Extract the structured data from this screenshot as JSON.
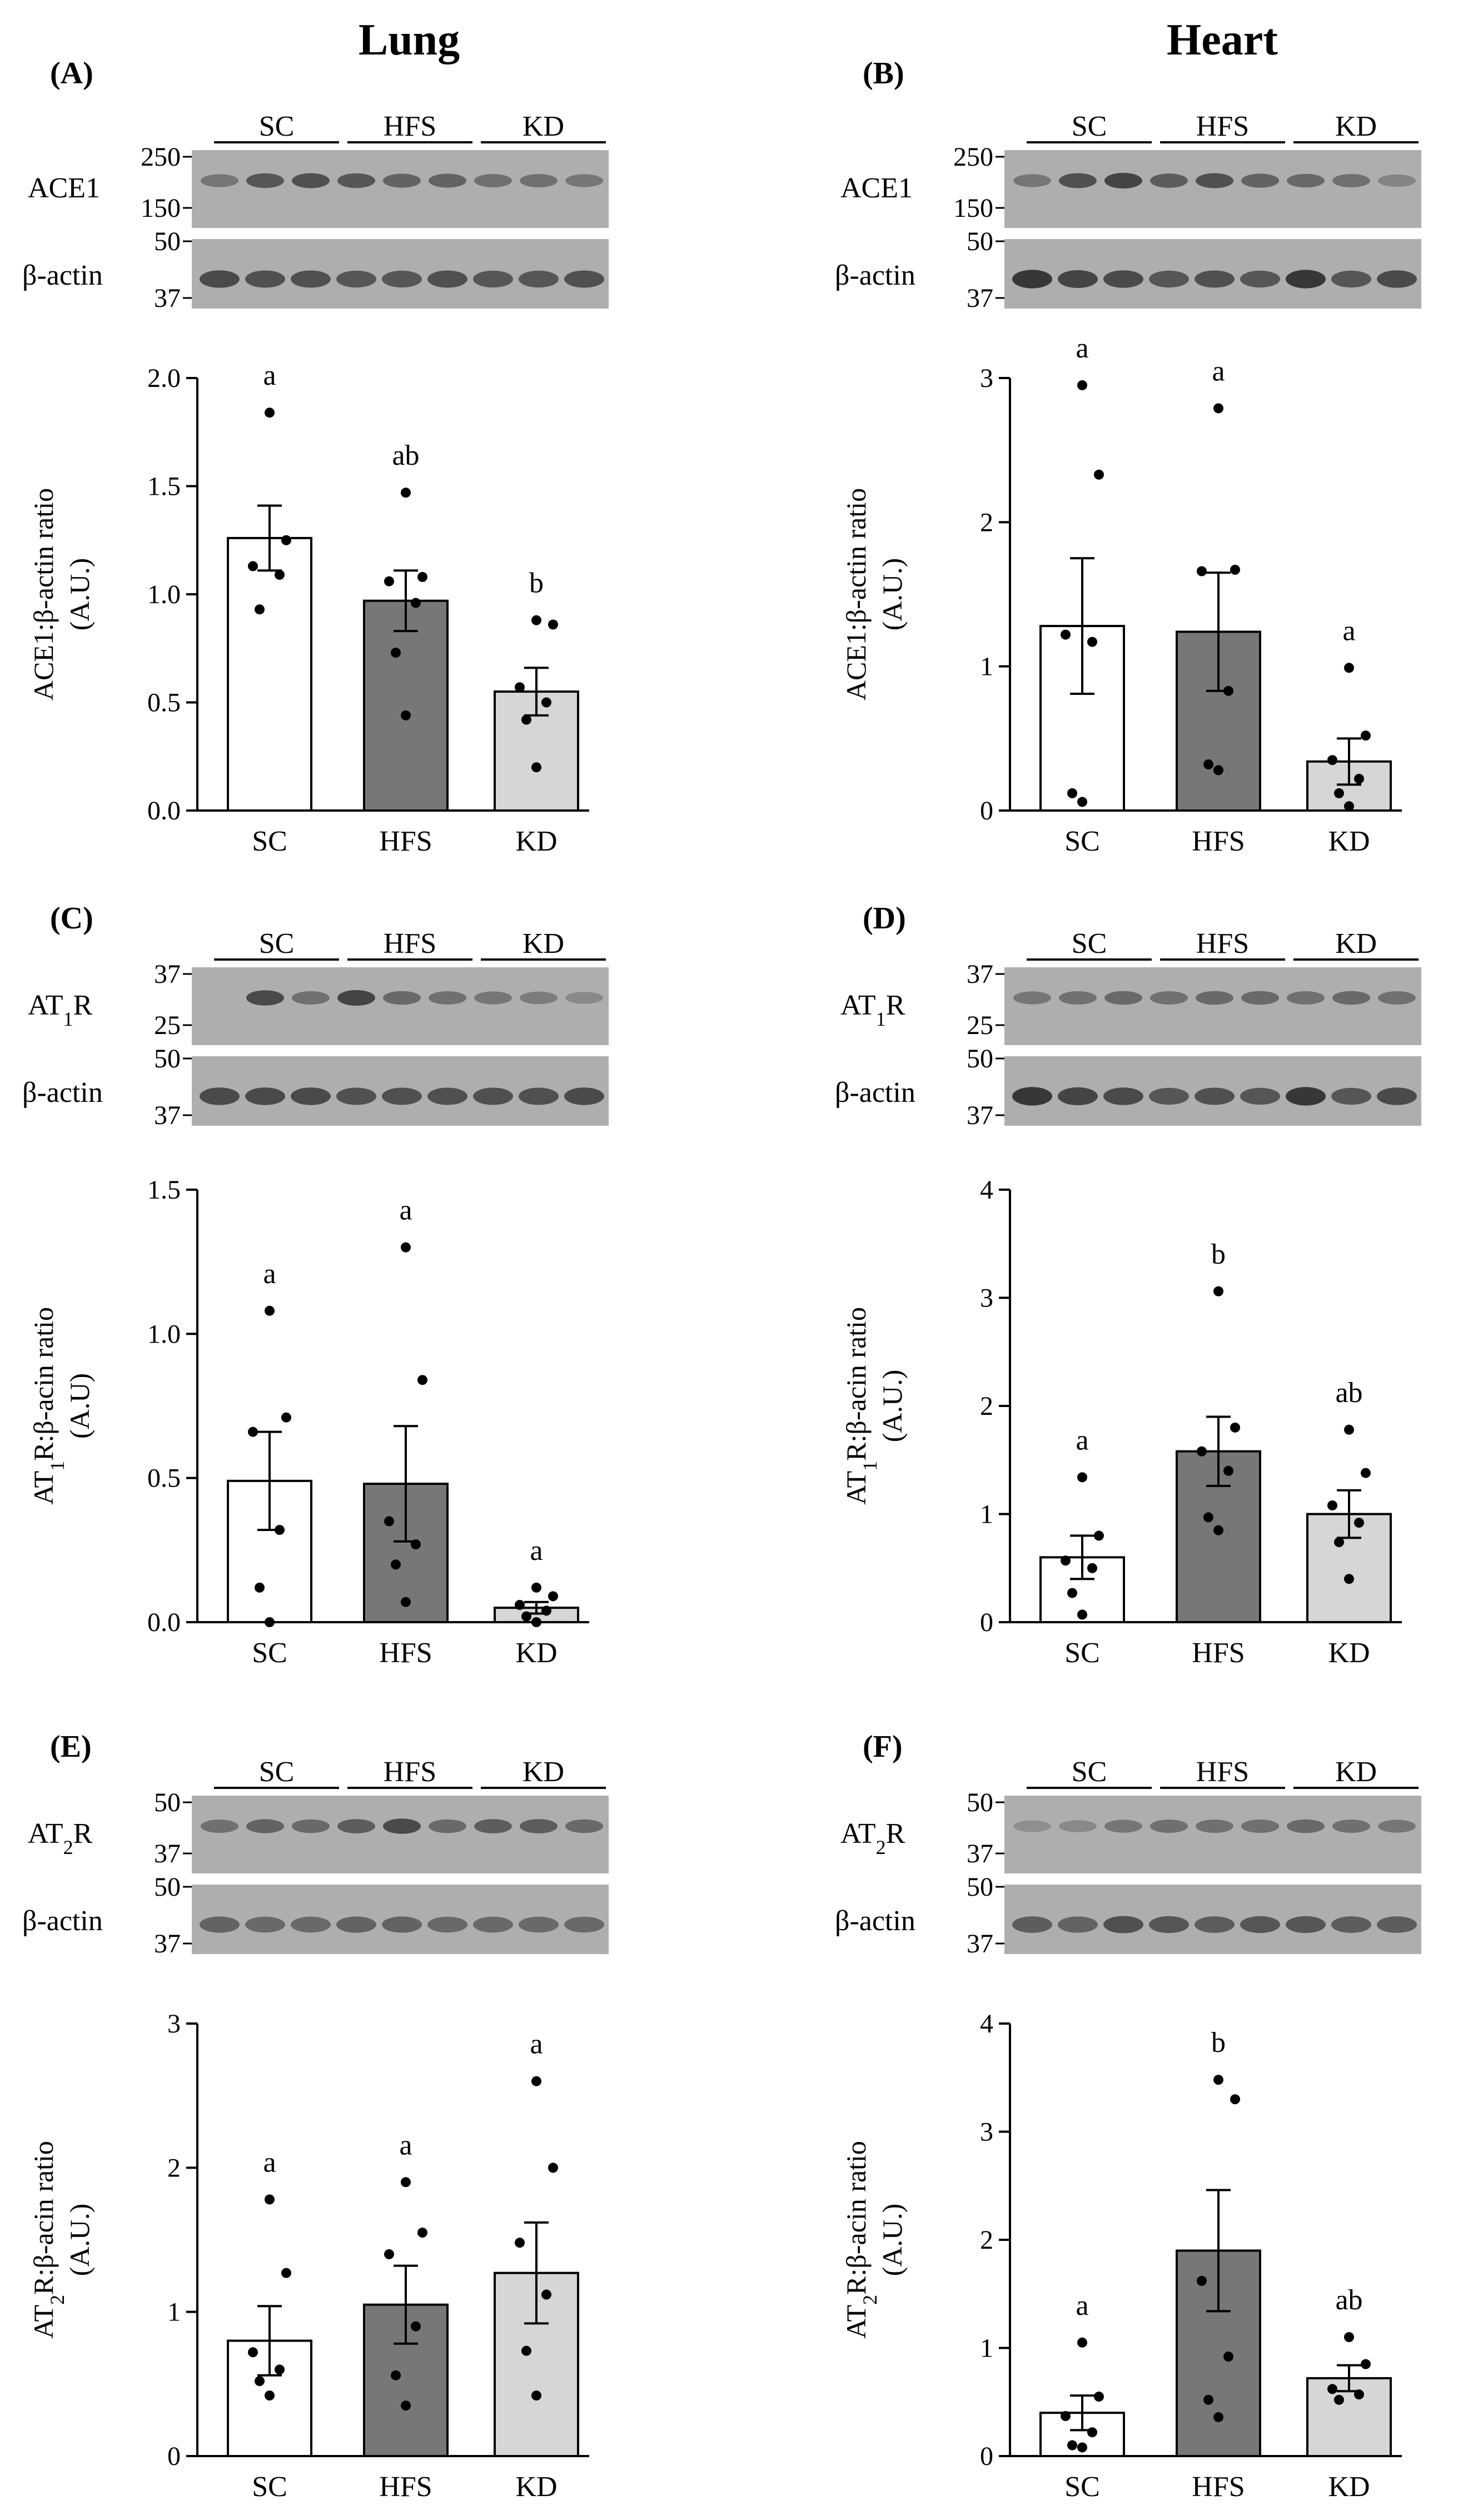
{
  "columns": [
    "Lung",
    "Heart"
  ],
  "groups": [
    "SC",
    "HFS",
    "KD"
  ],
  "colors": {
    "SC": "#ffffff",
    "HFS": "#777777",
    "KD": "#d6d6d6",
    "blot_bg": "#aeaeae",
    "band": "#3a3a3a"
  },
  "chart_data": [
    {
      "type": "bar",
      "panel": "(A)",
      "tissue": "Lung",
      "protein": "ACE1",
      "blot_markers": [
        "250",
        "150"
      ],
      "actin_markers": [
        "50",
        "37"
      ],
      "loading_label": "β-actin",
      "band_intensity": [
        0.45,
        0.7,
        0.75,
        0.7,
        0.6,
        0.6,
        0.5,
        0.5,
        0.45
      ],
      "actin_intensity": [
        0.8,
        0.75,
        0.75,
        0.7,
        0.7,
        0.75,
        0.7,
        0.7,
        0.75
      ],
      "ylabel": "ACE1:β-actin ratio",
      "ylabel2": "(A.U.)",
      "ylim": [
        0,
        2.0
      ],
      "yticks": [
        0.0,
        0.5,
        1.0,
        1.5,
        2.0
      ],
      "tick_labels": [
        "0.0",
        "0.5",
        "1.0",
        "1.5",
        "2.0"
      ],
      "categories": [
        "SC",
        "HFS",
        "KD"
      ],
      "values": [
        1.26,
        0.97,
        0.55
      ],
      "sem": [
        0.15,
        0.14,
        0.11
      ],
      "significance": [
        "a",
        "ab",
        "b"
      ],
      "points": [
        [
          1.84,
          1.25,
          1.13,
          1.09,
          0.93
        ],
        [
          1.47,
          1.08,
          1.06,
          0.96,
          0.73,
          0.44
        ],
        [
          0.88,
          0.86,
          0.57,
          0.5,
          0.42,
          0.2
        ]
      ]
    },
    {
      "type": "bar",
      "panel": "(B)",
      "tissue": "Heart",
      "protein": "ACE1",
      "blot_markers": [
        "250",
        "150"
      ],
      "actin_markers": [
        "50",
        "37"
      ],
      "loading_label": "β-actin",
      "band_intensity": [
        0.45,
        0.75,
        0.85,
        0.65,
        0.75,
        0.6,
        0.55,
        0.5,
        0.35
      ],
      "actin_intensity": [
        0.95,
        0.85,
        0.8,
        0.7,
        0.75,
        0.7,
        0.95,
        0.7,
        0.8
      ],
      "ylabel": "ACE1:β-actin ratio",
      "ylabel2": "(A.U.)",
      "ylim": [
        0,
        3
      ],
      "yticks": [
        0,
        1,
        2,
        3
      ],
      "tick_labels": [
        "0",
        "1",
        "2",
        "3"
      ],
      "categories": [
        "SC",
        "HFS",
        "KD"
      ],
      "values": [
        1.28,
        1.24,
        0.34
      ],
      "sem": [
        0.47,
        0.41,
        0.16
      ],
      "significance": [
        "a",
        "a",
        "a"
      ],
      "points": [
        [
          2.95,
          2.33,
          1.22,
          1.17,
          0.12,
          0.06
        ],
        [
          2.79,
          1.67,
          1.66,
          0.83,
          0.32,
          0.28
        ],
        [
          0.99,
          0.52,
          0.35,
          0.22,
          0.12,
          0.03
        ]
      ]
    },
    {
      "type": "bar",
      "panel": "(C)",
      "tissue": "Lung",
      "protein": "AT",
      "protein_sub": "1",
      "protein_suffix": "R",
      "blot_markers": [
        "37",
        "25"
      ],
      "actin_markers": [
        "50",
        "37"
      ],
      "loading_label": "β-actin",
      "band_intensity": [
        0.0,
        0.8,
        0.5,
        0.85,
        0.55,
        0.5,
        0.45,
        0.4,
        0.3
      ],
      "actin_intensity": [
        0.8,
        0.8,
        0.8,
        0.75,
        0.75,
        0.75,
        0.75,
        0.75,
        0.8
      ],
      "ylabel": "AT",
      "ylabel_sub": "1",
      "ylabel_rest": "R:β-acin ratio",
      "ylabel2": "(A.U)",
      "ylim": [
        0,
        1.5
      ],
      "yticks": [
        0.0,
        0.5,
        1.0,
        1.5
      ],
      "tick_labels": [
        "0.0",
        "0.5",
        "1.0",
        "1.5"
      ],
      "categories": [
        "SC",
        "HFS",
        "KD"
      ],
      "values": [
        0.49,
        0.48,
        0.05
      ],
      "sem": [
        0.17,
        0.2,
        0.02
      ],
      "significance": [
        "a",
        "a",
        "a"
      ],
      "points": [
        [
          1.08,
          0.71,
          0.66,
          0.32,
          0.12,
          0.0
        ],
        [
          1.3,
          0.84,
          0.35,
          0.27,
          0.2,
          0.07
        ],
        [
          0.12,
          0.09,
          0.06,
          0.04,
          0.02,
          0.0
        ]
      ]
    },
    {
      "type": "bar",
      "panel": "(D)",
      "tissue": "Heart",
      "protein": "AT",
      "protein_sub": "1",
      "protein_suffix": "R",
      "blot_markers": [
        "37",
        "25"
      ],
      "actin_markers": [
        "50",
        "37"
      ],
      "loading_label": "β-actin",
      "band_intensity": [
        0.45,
        0.5,
        0.55,
        0.5,
        0.55,
        0.55,
        0.5,
        0.55,
        0.5
      ],
      "actin_intensity": [
        0.95,
        0.85,
        0.8,
        0.7,
        0.75,
        0.7,
        0.95,
        0.7,
        0.8
      ],
      "ylabel": "AT",
      "ylabel_sub": "1",
      "ylabel_rest": "R:β-acin ratio",
      "ylabel2": "(A.U.)",
      "ylim": [
        0,
        4
      ],
      "yticks": [
        0,
        1,
        2,
        3,
        4
      ],
      "tick_labels": [
        "0",
        "1",
        "2",
        "3",
        "4"
      ],
      "categories": [
        "SC",
        "HFS",
        "KD"
      ],
      "values": [
        0.6,
        1.58,
        1.0
      ],
      "sem": [
        0.2,
        0.32,
        0.22
      ],
      "significance": [
        "a",
        "b",
        "ab"
      ],
      "points": [
        [
          1.34,
          0.8,
          0.57,
          0.5,
          0.27,
          0.07
        ],
        [
          3.06,
          1.8,
          1.58,
          1.4,
          0.97,
          0.85
        ],
        [
          1.78,
          1.38,
          1.08,
          0.92,
          0.74,
          0.4
        ]
      ]
    },
    {
      "type": "bar",
      "panel": "(E)",
      "tissue": "Lung",
      "protein": "AT",
      "protein_sub": "2",
      "protein_suffix": "R",
      "blot_markers": [
        "50",
        "37"
      ],
      "actin_markers": [
        "50",
        "37"
      ],
      "loading_label": "β-actin",
      "band_intensity": [
        0.5,
        0.6,
        0.55,
        0.65,
        0.8,
        0.55,
        0.65,
        0.65,
        0.55
      ],
      "actin_intensity": [
        0.6,
        0.55,
        0.55,
        0.6,
        0.6,
        0.55,
        0.55,
        0.55,
        0.55
      ],
      "ylabel": "AT",
      "ylabel_sub": "2",
      "ylabel_rest": "R:β-acin ratio",
      "ylabel2": "(A.U.)",
      "ylim": [
        0,
        3
      ],
      "yticks": [
        0,
        1,
        2,
        3
      ],
      "tick_labels": [
        "0",
        "1",
        "2",
        "3"
      ],
      "categories": [
        "SC",
        "HFS",
        "KD"
      ],
      "values": [
        0.8,
        1.05,
        1.27
      ],
      "sem": [
        0.24,
        0.27,
        0.35
      ],
      "significance": [
        "a",
        "a",
        "a"
      ],
      "points": [
        [
          1.78,
          1.27,
          0.72,
          0.6,
          0.52,
          0.42
        ],
        [
          1.9,
          1.55,
          1.4,
          0.9,
          0.56,
          0.35
        ],
        [
          2.6,
          2.0,
          1.48,
          1.12,
          0.73,
          0.42
        ]
      ]
    },
    {
      "type": "bar",
      "panel": "(F)",
      "tissue": "Heart",
      "protein": "AT",
      "protein_sub": "2",
      "protein_suffix": "R",
      "blot_markers": [
        "50",
        "37"
      ],
      "actin_markers": [
        "50",
        "37"
      ],
      "loading_label": "β-actin",
      "band_intensity": [
        0.25,
        0.3,
        0.45,
        0.5,
        0.5,
        0.5,
        0.55,
        0.5,
        0.45
      ],
      "actin_intensity": [
        0.65,
        0.6,
        0.75,
        0.7,
        0.65,
        0.7,
        0.7,
        0.65,
        0.65
      ],
      "ylabel": "AT",
      "ylabel_sub": "2",
      "ylabel_rest": "R:β-acin ratio",
      "ylabel2": "(A.U.)",
      "ylim": [
        0,
        4
      ],
      "yticks": [
        0,
        1,
        2,
        3,
        4
      ],
      "tick_labels": [
        "0",
        "1",
        "2",
        "3",
        "4"
      ],
      "categories": [
        "SC",
        "HFS",
        "KD"
      ],
      "values": [
        0.4,
        1.9,
        0.72
      ],
      "sem": [
        0.16,
        0.56,
        0.12
      ],
      "significance": [
        "a",
        "b",
        "ab"
      ],
      "points": [
        [
          1.05,
          0.55,
          0.37,
          0.22,
          0.1,
          0.08
        ],
        [
          3.48,
          3.3,
          1.62,
          0.92,
          0.52,
          0.36
        ],
        [
          1.1,
          0.85,
          0.62,
          0.57,
          0.52
        ]
      ]
    }
  ]
}
